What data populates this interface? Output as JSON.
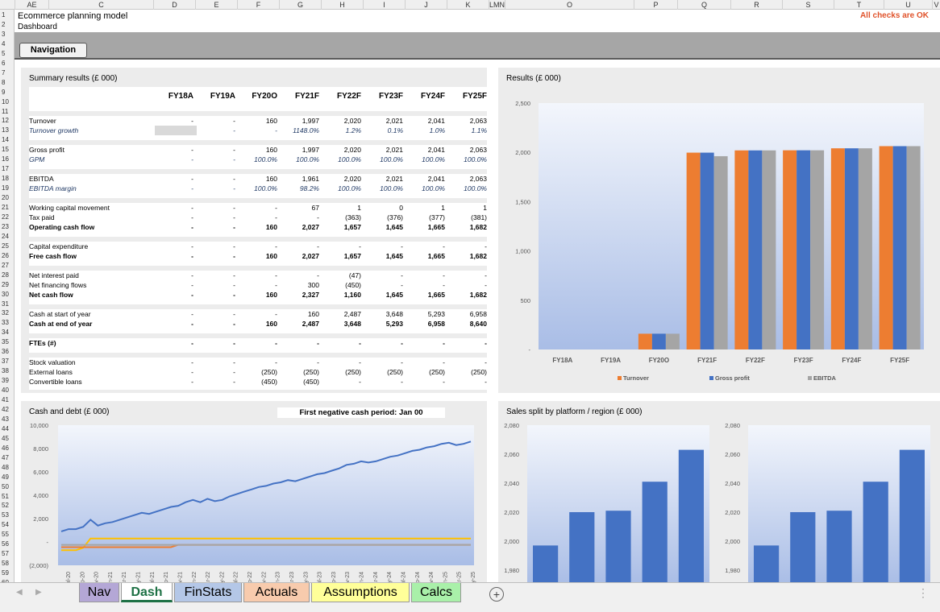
{
  "column_headers": [
    "AE",
    "C",
    "D",
    "E",
    "F",
    "G",
    "H",
    "I",
    "J",
    "K",
    "LMN",
    "O",
    "P",
    "Q",
    "R",
    "S",
    "T",
    "U",
    "V"
  ],
  "row_numbers": [
    "1",
    "2",
    "3",
    "4",
    "5",
    "6",
    "7",
    "8",
    "9",
    "10",
    "11",
    "12",
    "13",
    "14",
    "15",
    "16",
    "17",
    "18",
    "19",
    "20",
    "21",
    "22",
    "23",
    "24",
    "25",
    "26",
    "27",
    "28",
    "29",
    "30",
    "31",
    "32",
    "33",
    "34",
    "35",
    "36",
    "37",
    "38",
    "39",
    "40",
    "41",
    "42",
    "43",
    "44",
    "45",
    "46",
    "47",
    "48",
    "49",
    "50",
    "51",
    "52",
    "53",
    "54",
    "55",
    "56",
    "57",
    "58",
    "59",
    "60",
    "61",
    "62"
  ],
  "header": {
    "title": "Ecommerce planning model",
    "subtitle": "Dashboard",
    "checks": "All checks are OK",
    "checks_color": "#e0532b",
    "nav_button": "Navigation"
  },
  "summary": {
    "title": "Summary results (£ 000)",
    "years": [
      "FY18A",
      "FY19A",
      "FY20O",
      "FY21F",
      "FY22F",
      "FY23F",
      "FY24F",
      "FY25F"
    ],
    "rows": [
      {
        "label": "Turnover",
        "style": "normal",
        "values": [
          "-",
          "-",
          "160",
          "1,997",
          "2,020",
          "2,021",
          "2,041",
          "2,063"
        ]
      },
      {
        "label": "Turnover growth",
        "style": "italic",
        "values": [
          "",
          "-",
          "-",
          "1148.0%",
          "1.2%",
          "0.1%",
          "1.0%",
          "1.1%"
        ]
      },
      {
        "label": "Gross profit",
        "style": "normal",
        "values": [
          "-",
          "-",
          "160",
          "1,997",
          "2,020",
          "2,021",
          "2,041",
          "2,063"
        ]
      },
      {
        "label": "GPM",
        "style": "italic",
        "values": [
          "-",
          "-",
          "100.0%",
          "100.0%",
          "100.0%",
          "100.0%",
          "100.0%",
          "100.0%"
        ]
      },
      {
        "label": "EBITDA",
        "style": "normal",
        "values": [
          "-",
          "-",
          "160",
          "1,961",
          "2,020",
          "2,021",
          "2,041",
          "2,063"
        ]
      },
      {
        "label": "EBITDA margin",
        "style": "italic",
        "values": [
          "-",
          "-",
          "100.0%",
          "98.2%",
          "100.0%",
          "100.0%",
          "100.0%",
          "100.0%"
        ]
      },
      {
        "label": "Working capital movement",
        "style": "normal",
        "values": [
          "-",
          "-",
          "-",
          "67",
          "1",
          "0",
          "1",
          "1"
        ]
      },
      {
        "label": "Tax paid",
        "style": "normal",
        "values": [
          "-",
          "-",
          "-",
          "-",
          "(363)",
          "(376)",
          "(377)",
          "(381)"
        ]
      },
      {
        "label": "Operating cash flow",
        "style": "bold",
        "values": [
          "-",
          "-",
          "160",
          "2,027",
          "1,657",
          "1,645",
          "1,665",
          "1,682"
        ]
      },
      {
        "label": "Capital expenditure",
        "style": "normal",
        "values": [
          "-",
          "-",
          "-",
          "-",
          "-",
          "-",
          "-",
          "-"
        ]
      },
      {
        "label": "Free cash flow",
        "style": "bold",
        "values": [
          "-",
          "-",
          "160",
          "2,027",
          "1,657",
          "1,645",
          "1,665",
          "1,682"
        ]
      },
      {
        "label": "Net interest paid",
        "style": "normal",
        "values": [
          "-",
          "-",
          "-",
          "-",
          "(47)",
          "-",
          "-",
          "-"
        ]
      },
      {
        "label": "Net financing flows",
        "style": "normal",
        "values": [
          "-",
          "-",
          "-",
          "300",
          "(450)",
          "-",
          "-",
          "-"
        ]
      },
      {
        "label": "Net cash flow",
        "style": "bold",
        "values": [
          "-",
          "-",
          "160",
          "2,327",
          "1,160",
          "1,645",
          "1,665",
          "1,682"
        ]
      },
      {
        "label": "Cash at start of year",
        "style": "normal",
        "values": [
          "-",
          "-",
          "-",
          "160",
          "2,487",
          "3,648",
          "5,293",
          "6,958"
        ]
      },
      {
        "label": "Cash at end of year",
        "style": "bold",
        "values": [
          "-",
          "-",
          "160",
          "2,487",
          "3,648",
          "5,293",
          "6,958",
          "8,640"
        ]
      },
      {
        "label": "FTEs (#)",
        "style": "bold",
        "values": [
          "-",
          "-",
          "-",
          "-",
          "-",
          "-",
          "-",
          "-"
        ]
      },
      {
        "label": "Stock valuation",
        "style": "normal",
        "values": [
          "-",
          "-",
          "-",
          "-",
          "-",
          "-",
          "-",
          "-"
        ]
      },
      {
        "label": "External loans",
        "style": "normal",
        "values": [
          "-",
          "-",
          "(250)",
          "(250)",
          "(250)",
          "(250)",
          "(250)",
          "(250)"
        ]
      },
      {
        "label": "Convertible loans",
        "style": "normal",
        "values": [
          "-",
          "-",
          "(450)",
          "(450)",
          "-",
          "-",
          "-",
          "-"
        ]
      }
    ]
  },
  "results_chart": {
    "title": "Results (£ 000)"
  },
  "cash_chart": {
    "title": "Cash and debt (£ 000)",
    "negative_label": "First negative cash period: Jan 00"
  },
  "sales_chart": {
    "title": "Sales split by platform / region (£ 000)"
  },
  "chart_data": [
    {
      "type": "bar",
      "title": "Results (£ 000)",
      "categories": [
        "FY18A",
        "FY19A",
        "FY20O",
        "FY21F",
        "FY22F",
        "FY23F",
        "FY24F",
        "FY25F"
      ],
      "series": [
        {
          "name": "Turnover",
          "color": "#ed7d31",
          "values": [
            0,
            0,
            160,
            1997,
            2020,
            2021,
            2041,
            2063
          ]
        },
        {
          "name": "Gross profit",
          "color": "#4472c4",
          "values": [
            0,
            0,
            160,
            1997,
            2020,
            2021,
            2041,
            2063
          ]
        },
        {
          "name": "EBITDA",
          "color": "#a5a5a5",
          "values": [
            0,
            0,
            160,
            1961,
            2020,
            2021,
            2041,
            2063
          ]
        }
      ],
      "ylim": [
        0,
        2500
      ],
      "yticks": [
        "-",
        "500",
        "1,000",
        "1,500",
        "2,000",
        "2,500"
      ],
      "legend": "bottom"
    },
    {
      "type": "line",
      "title": "Cash and debt (£ 000)",
      "ylim": [
        -2000,
        10000
      ],
      "yticks": [
        "(2,000)",
        "-",
        "2,000",
        "4,000",
        "6,000",
        "8,000",
        "10,000"
      ],
      "xticks": [
        "Jul-20",
        "Sep-20",
        "Nov-20",
        "Jan-21",
        "Mar-21",
        "May-21",
        "Jul-21",
        "Sep-21",
        "Nov-21",
        "Jan-22",
        "Mar-22",
        "May-22",
        "Jul-22",
        "Sep-22",
        "Nov-22",
        "Jan-23",
        "Mar-23",
        "May-23",
        "Jul-23",
        "Sep-23",
        "Nov-23",
        "Jan-24",
        "Mar-24",
        "May-24",
        "Jul-24",
        "Sep-24",
        "Nov-24",
        "Jan-25",
        "Mar-25",
        "May-25"
      ],
      "series": [
        {
          "name": "Cash",
          "color": "#4472c4",
          "values": [
            900,
            1100,
            1100,
            1300,
            1900,
            1400,
            1600,
            1700,
            1900,
            2100,
            2300,
            2500,
            2400,
            2600,
            2800,
            3000,
            3100,
            3400,
            3600,
            3400,
            3700,
            3500,
            3600,
            3900,
            4100,
            4300,
            4500,
            4700,
            4800,
            5000,
            5100,
            5300,
            5200,
            5400,
            5600,
            5800,
            5900,
            6100,
            6300,
            6600,
            6700,
            6900,
            6800,
            6900,
            7100,
            7300,
            7400,
            7600,
            7800,
            7900,
            8100,
            8200,
            8400,
            8500,
            8300,
            8400,
            8600
          ]
        },
        {
          "name": "Debt A",
          "color": "#ffc000",
          "values": [
            -700,
            -700,
            -700,
            -500,
            300,
            300,
            300,
            300,
            300,
            300,
            300,
            300,
            300,
            300,
            300,
            300,
            300,
            300,
            300,
            300,
            300,
            300,
            300,
            300,
            300,
            300,
            300,
            300,
            300,
            300,
            300,
            300,
            300,
            300,
            300,
            300,
            300,
            300,
            300,
            300,
            300,
            300,
            300,
            300,
            300,
            300,
            300,
            300,
            300,
            300,
            300,
            300,
            300,
            300,
            300,
            300,
            300
          ]
        },
        {
          "name": "Debt B",
          "color": "#ed7d31",
          "values": [
            -450,
            -450,
            -450,
            -450,
            -450,
            -450,
            -450,
            -450,
            -450,
            -450,
            -450,
            -450,
            -450,
            -450,
            -450,
            -450,
            -250,
            -250,
            -250,
            -250,
            -250,
            -250,
            -250,
            -250,
            -250,
            -250,
            -250,
            -250,
            -250,
            -250,
            -250,
            -250,
            -250,
            -250,
            -250,
            -250,
            -250,
            -250,
            -250,
            -250,
            -250,
            -250,
            -250,
            -250,
            -250,
            -250,
            -250,
            -250,
            -250,
            -250,
            -250,
            -250,
            -250,
            -250,
            -250,
            -250,
            -250
          ]
        },
        {
          "name": "Debt C",
          "color": "#a5a5a5",
          "values": [
            -250,
            -250,
            -250,
            -250,
            -250,
            -250,
            -250,
            -250,
            -250,
            -250,
            -250,
            -250,
            -250,
            -250,
            -250,
            -250,
            -250,
            -250,
            -250,
            -250,
            -250,
            -250,
            -250,
            -250,
            -250,
            -250,
            -250,
            -250,
            -250,
            -250,
            -250,
            -250,
            -250,
            -250,
            -250,
            -250,
            -250,
            -250,
            -250,
            -250,
            -250,
            -250,
            -250,
            -250,
            -250,
            -250,
            -250,
            -250,
            -250,
            -250,
            -250,
            -250,
            -250,
            -250,
            -250,
            -250,
            -250
          ]
        }
      ]
    },
    {
      "type": "bar",
      "title": "Sales split by platform / region (£ 000)",
      "values": [
        1997,
        2020,
        2021,
        2041,
        2063
      ],
      "color": "#4472c4",
      "ylim": [
        1980,
        2080
      ],
      "yticks": [
        "1,980",
        "2,000",
        "2,020",
        "2,040",
        "2,060",
        "2,080"
      ]
    },
    {
      "type": "bar",
      "values": [
        1997,
        2020,
        2021,
        2041,
        2063
      ],
      "color": "#4472c4",
      "ylim": [
        1980,
        2080
      ],
      "yticks": [
        "1,980",
        "2,000",
        "2,020",
        "2,040",
        "2,060",
        "2,080"
      ]
    }
  ],
  "tabs": [
    {
      "label": "Nav",
      "color": "#b4a7d6",
      "text_color": "#000"
    },
    {
      "label": "Dash",
      "color": "#ffffff",
      "text_color": "#1e7145",
      "active": true
    },
    {
      "label": "FinStats",
      "color": "#b4c7e7",
      "text_color": "#000"
    },
    {
      "label": "Actuals",
      "color": "#f8cbad",
      "text_color": "#000"
    },
    {
      "label": "Assumptions",
      "color": "#ffff99",
      "text_color": "#000"
    },
    {
      "label": "Calcs",
      "color": "#a9f0a9",
      "text_color": "#000"
    }
  ]
}
